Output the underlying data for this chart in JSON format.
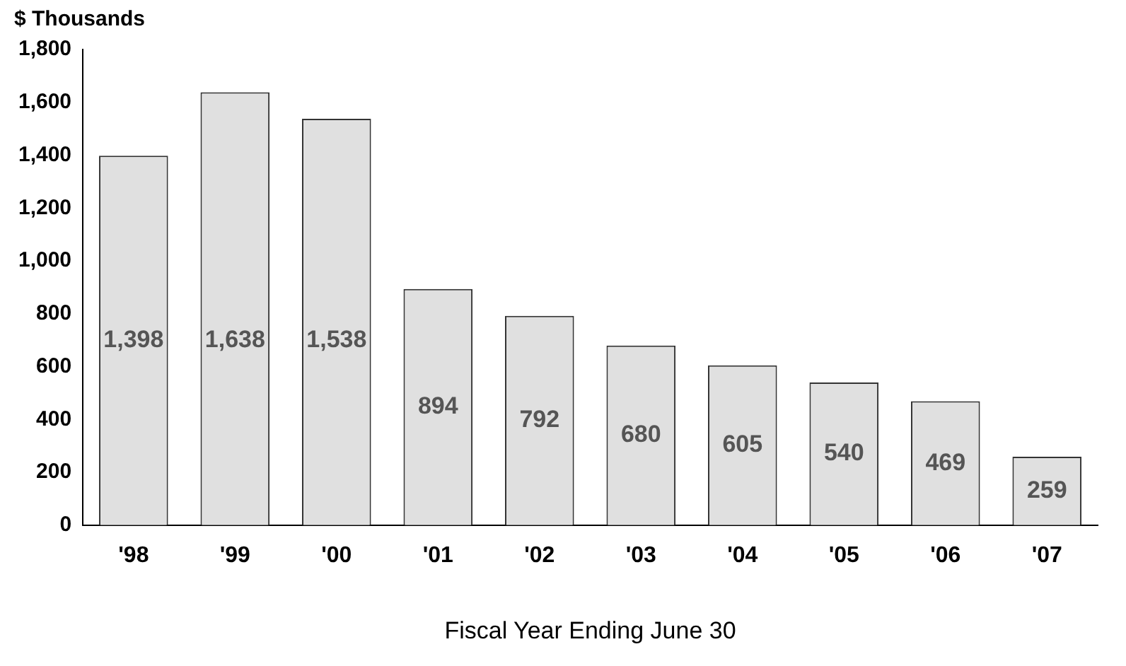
{
  "chart_data": {
    "type": "bar",
    "ylabel": "$ Thousands",
    "xlabel": "Fiscal Year Ending June 30",
    "categories": [
      "'98",
      "'99",
      "'00",
      "'01",
      "'02",
      "'03",
      "'04",
      "'05",
      "'06",
      "'07"
    ],
    "values": [
      1398,
      1638,
      1538,
      894,
      792,
      680,
      605,
      540,
      469,
      259
    ],
    "value_labels": [
      "1,398",
      "1,638",
      "1,538",
      "894",
      "792",
      "680",
      "605",
      "540",
      "469",
      "259"
    ],
    "color": "#e0e0e0",
    "ylim": [
      0,
      1800
    ],
    "yticks": [
      0,
      200,
      400,
      600,
      800,
      {
        "value": 1000,
        "label": "1,000"
      },
      {
        "value": 1200,
        "label": "1,200"
      },
      {
        "value": 1400,
        "label": "1,400"
      },
      {
        "value": 1600,
        "label": "1,600"
      },
      {
        "value": 1800,
        "label": "1,800"
      }
    ],
    "grid": false,
    "legend": false
  }
}
